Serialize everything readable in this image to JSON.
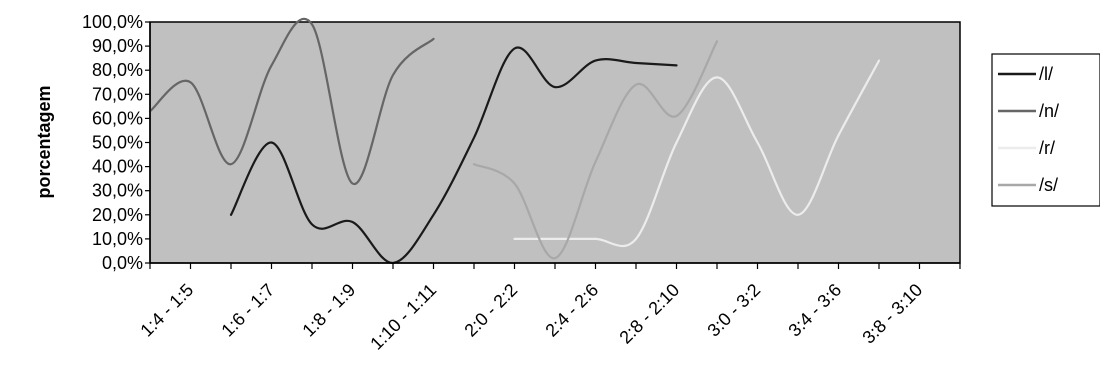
{
  "chart_data": {
    "type": "line",
    "ylabel": "porcentagem",
    "ylim": [
      0,
      100
    ],
    "yticks": [
      "0,0%",
      "10,0%",
      "20,0%",
      "30,0%",
      "40,0%",
      "50,0%",
      "60,0%",
      "70,0%",
      "80,0%",
      "90,0%",
      "100,0%"
    ],
    "categories": [
      "1:4 - 1:5",
      "1:6 - 1:7",
      "1:8 - 1:9",
      "1:10 - 1:11",
      "2:0 - 2:2",
      "2:4 - 2:6",
      "2:8 - 2:10",
      "3:0 - 3:2",
      "3:4 - 3:6",
      "3:8 - 3:10"
    ],
    "plot_background": "#c0c0c0",
    "legend_position": "right",
    "series": [
      {
        "name": "/l/",
        "color": "#1a1a1a",
        "points": [
          [
            2,
            20
          ],
          [
            3,
            50
          ],
          [
            4,
            16
          ],
          [
            5,
            17
          ],
          [
            6,
            0
          ],
          [
            7,
            20
          ],
          [
            8,
            52
          ],
          [
            9,
            89
          ],
          [
            10,
            73
          ],
          [
            11,
            84
          ],
          [
            12,
            83
          ],
          [
            13,
            82
          ]
        ]
      },
      {
        "name": "/n/",
        "color": "#666666",
        "points": [
          [
            0,
            63
          ],
          [
            1,
            75
          ],
          [
            2,
            41
          ],
          [
            3,
            82
          ],
          [
            4,
            99
          ],
          [
            5,
            33
          ],
          [
            6,
            78
          ],
          [
            7,
            93
          ]
        ]
      },
      {
        "name": "/r/",
        "color": "#ececec",
        "points": [
          [
            9,
            10
          ],
          [
            10,
            10
          ],
          [
            11,
            10
          ],
          [
            12,
            10
          ],
          [
            13,
            50
          ],
          [
            14,
            77
          ],
          [
            15,
            50
          ],
          [
            16,
            20
          ],
          [
            17,
            53
          ],
          [
            18,
            84
          ]
        ]
      },
      {
        "name": "/s/",
        "color": "#a8a8a8",
        "points": [
          [
            8,
            41
          ],
          [
            9,
            33
          ],
          [
            10,
            2
          ],
          [
            11,
            42
          ],
          [
            12,
            74
          ],
          [
            13,
            61
          ],
          [
            14,
            92
          ]
        ]
      }
    ]
  }
}
